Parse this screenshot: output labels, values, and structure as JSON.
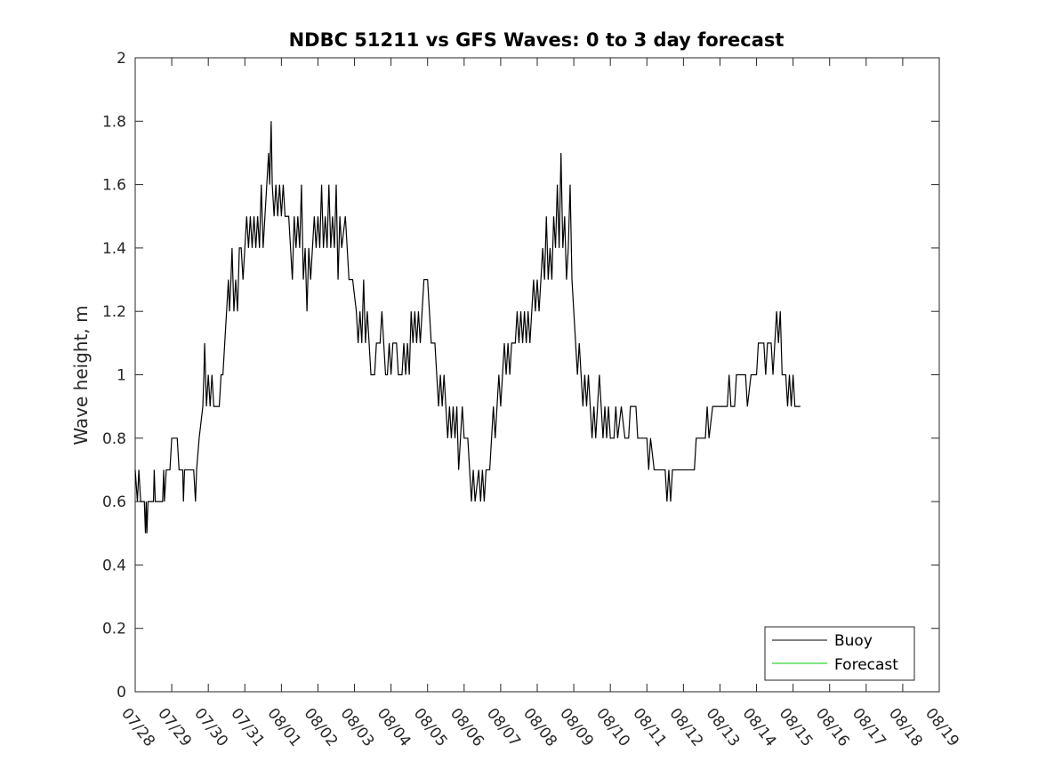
{
  "chart_data": {
    "type": "line",
    "title": "NDBC 51211 vs GFS Waves: 0 to 3 day forecast",
    "xlabel": "",
    "ylabel": "Wave height, m",
    "ylim": [
      0,
      2
    ],
    "yticks": [
      "0",
      "0.2",
      "0.4",
      "0.6",
      "0.8",
      "1",
      "1.2",
      "1.4",
      "1.6",
      "1.8",
      "2"
    ],
    "xlim_days": [
      0,
      22
    ],
    "xticks": [
      "07/28",
      "07/29",
      "07/30",
      "07/31",
      "08/01",
      "08/02",
      "08/03",
      "08/04",
      "08/05",
      "08/06",
      "08/07",
      "08/08",
      "08/09",
      "08/10",
      "08/11",
      "08/12",
      "08/13",
      "08/14",
      "08/15",
      "08/16",
      "08/17",
      "08/18",
      "08/19"
    ],
    "grid": false,
    "legend": "bottom-right",
    "series": [
      {
        "name": "Buoy",
        "color": "#000000",
        "points": [
          [
            0.0,
            0.7
          ],
          [
            0.06,
            0.6
          ],
          [
            0.1,
            0.7
          ],
          [
            0.15,
            0.6
          ],
          [
            0.25,
            0.6
          ],
          [
            0.28,
            0.5
          ],
          [
            0.3,
            0.6
          ],
          [
            0.32,
            0.5
          ],
          [
            0.35,
            0.6
          ],
          [
            0.5,
            0.6
          ],
          [
            0.52,
            0.7
          ],
          [
            0.55,
            0.6
          ],
          [
            0.75,
            0.6
          ],
          [
            0.78,
            0.7
          ],
          [
            0.8,
            0.6
          ],
          [
            0.85,
            0.7
          ],
          [
            0.95,
            0.7
          ],
          [
            1.0,
            0.8
          ],
          [
            1.15,
            0.8
          ],
          [
            1.2,
            0.7
          ],
          [
            1.3,
            0.7
          ],
          [
            1.32,
            0.6
          ],
          [
            1.35,
            0.7
          ],
          [
            1.6,
            0.7
          ],
          [
            1.65,
            0.6
          ],
          [
            1.68,
            0.7
          ],
          [
            1.75,
            0.8
          ],
          [
            1.85,
            0.9
          ],
          [
            1.88,
            1.0
          ],
          [
            1.9,
            1.1
          ],
          [
            1.95,
            0.9
          ],
          [
            2.0,
            1.0
          ],
          [
            2.05,
            0.9
          ],
          [
            2.1,
            1.0
          ],
          [
            2.15,
            0.9
          ],
          [
            2.3,
            0.9
          ],
          [
            2.35,
            1.0
          ],
          [
            2.4,
            1.0
          ],
          [
            2.45,
            1.1
          ],
          [
            2.5,
            1.2
          ],
          [
            2.55,
            1.3
          ],
          [
            2.58,
            1.2
          ],
          [
            2.62,
            1.3
          ],
          [
            2.65,
            1.4
          ],
          [
            2.7,
            1.2
          ],
          [
            2.75,
            1.3
          ],
          [
            2.8,
            1.2
          ],
          [
            2.85,
            1.4
          ],
          [
            2.9,
            1.4
          ],
          [
            2.95,
            1.3
          ],
          [
            3.0,
            1.4
          ],
          [
            3.05,
            1.5
          ],
          [
            3.1,
            1.4
          ],
          [
            3.15,
            1.5
          ],
          [
            3.2,
            1.4
          ],
          [
            3.25,
            1.5
          ],
          [
            3.3,
            1.4
          ],
          [
            3.35,
            1.5
          ],
          [
            3.4,
            1.4
          ],
          [
            3.45,
            1.6
          ],
          [
            3.5,
            1.4
          ],
          [
            3.55,
            1.5
          ],
          [
            3.6,
            1.6
          ],
          [
            3.65,
            1.7
          ],
          [
            3.68,
            1.6
          ],
          [
            3.72,
            1.8
          ],
          [
            3.75,
            1.6
          ],
          [
            3.8,
            1.5
          ],
          [
            3.85,
            1.6
          ],
          [
            3.9,
            1.5
          ],
          [
            3.95,
            1.6
          ],
          [
            4.0,
            1.5
          ],
          [
            4.05,
            1.6
          ],
          [
            4.1,
            1.5
          ],
          [
            4.2,
            1.5
          ],
          [
            4.25,
            1.4
          ],
          [
            4.3,
            1.3
          ],
          [
            4.35,
            1.5
          ],
          [
            4.4,
            1.4
          ],
          [
            4.45,
            1.5
          ],
          [
            4.5,
            1.4
          ],
          [
            4.55,
            1.6
          ],
          [
            4.6,
            1.3
          ],
          [
            4.65,
            1.4
          ],
          [
            4.7,
            1.2
          ],
          [
            4.75,
            1.4
          ],
          [
            4.8,
            1.3
          ],
          [
            4.85,
            1.4
          ],
          [
            4.9,
            1.5
          ],
          [
            4.95,
            1.4
          ],
          [
            5.0,
            1.5
          ],
          [
            5.05,
            1.4
          ],
          [
            5.1,
            1.6
          ],
          [
            5.15,
            1.4
          ],
          [
            5.2,
            1.5
          ],
          [
            5.25,
            1.4
          ],
          [
            5.3,
            1.6
          ],
          [
            5.35,
            1.4
          ],
          [
            5.4,
            1.5
          ],
          [
            5.45,
            1.4
          ],
          [
            5.5,
            1.6
          ],
          [
            5.55,
            1.3
          ],
          [
            5.6,
            1.5
          ],
          [
            5.65,
            1.4
          ],
          [
            5.75,
            1.5
          ],
          [
            5.8,
            1.4
          ],
          [
            5.85,
            1.3
          ],
          [
            5.95,
            1.3
          ],
          [
            6.05,
            1.2
          ],
          [
            6.1,
            1.1
          ],
          [
            6.15,
            1.2
          ],
          [
            6.2,
            1.1
          ],
          [
            6.25,
            1.3
          ],
          [
            6.3,
            1.1
          ],
          [
            6.35,
            1.2
          ],
          [
            6.4,
            1.1
          ],
          [
            6.45,
            1.0
          ],
          [
            6.55,
            1.0
          ],
          [
            6.6,
            1.1
          ],
          [
            6.7,
            1.1
          ],
          [
            6.75,
            1.2
          ],
          [
            6.8,
            1.1
          ],
          [
            6.85,
            1.0
          ],
          [
            6.9,
            1.0
          ],
          [
            6.95,
            1.1
          ],
          [
            7.0,
            1.0
          ],
          [
            7.05,
            1.1
          ],
          [
            7.15,
            1.1
          ],
          [
            7.2,
            1.0
          ],
          [
            7.3,
            1.0
          ],
          [
            7.35,
            1.1
          ],
          [
            7.4,
            1.0
          ],
          [
            7.45,
            1.1
          ],
          [
            7.5,
            1.0
          ],
          [
            7.55,
            1.2
          ],
          [
            7.6,
            1.1
          ],
          [
            7.65,
            1.2
          ],
          [
            7.7,
            1.1
          ],
          [
            7.75,
            1.2
          ],
          [
            7.8,
            1.1
          ],
          [
            7.85,
            1.2
          ],
          [
            7.9,
            1.3
          ],
          [
            8.0,
            1.3
          ],
          [
            8.05,
            1.2
          ],
          [
            8.1,
            1.1
          ],
          [
            8.2,
            1.1
          ],
          [
            8.25,
            1.0
          ],
          [
            8.3,
            0.9
          ],
          [
            8.35,
            1.0
          ],
          [
            8.4,
            0.9
          ],
          [
            8.45,
            1.0
          ],
          [
            8.5,
            0.9
          ],
          [
            8.55,
            0.8
          ],
          [
            8.6,
            0.9
          ],
          [
            8.65,
            0.8
          ],
          [
            8.7,
            0.9
          ],
          [
            8.75,
            0.8
          ],
          [
            8.8,
            0.9
          ],
          [
            8.85,
            0.7
          ],
          [
            8.9,
            0.8
          ],
          [
            8.95,
            0.9
          ],
          [
            9.0,
            0.8
          ],
          [
            9.1,
            0.8
          ],
          [
            9.15,
            0.7
          ],
          [
            9.2,
            0.6
          ],
          [
            9.25,
            0.7
          ],
          [
            9.3,
            0.6
          ],
          [
            9.4,
            0.7
          ],
          [
            9.45,
            0.6
          ],
          [
            9.5,
            0.7
          ],
          [
            9.55,
            0.6
          ],
          [
            9.6,
            0.7
          ],
          [
            9.7,
            0.7
          ],
          [
            9.75,
            0.8
          ],
          [
            9.8,
            0.9
          ],
          [
            9.85,
            0.8
          ],
          [
            9.9,
            0.9
          ],
          [
            9.95,
            1.0
          ],
          [
            10.0,
            0.9
          ],
          [
            10.05,
            1.0
          ],
          [
            10.1,
            1.1
          ],
          [
            10.15,
            1.0
          ],
          [
            10.2,
            1.1
          ],
          [
            10.25,
            1.0
          ],
          [
            10.3,
            1.1
          ],
          [
            10.4,
            1.1
          ],
          [
            10.45,
            1.2
          ],
          [
            10.5,
            1.1
          ],
          [
            10.55,
            1.2
          ],
          [
            10.6,
            1.1
          ],
          [
            10.65,
            1.2
          ],
          [
            10.7,
            1.1
          ],
          [
            10.75,
            1.2
          ],
          [
            10.8,
            1.1
          ],
          [
            10.85,
            1.2
          ],
          [
            10.9,
            1.3
          ],
          [
            10.95,
            1.2
          ],
          [
            11.0,
            1.3
          ],
          [
            11.05,
            1.2
          ],
          [
            11.1,
            1.3
          ],
          [
            11.15,
            1.4
          ],
          [
            11.2,
            1.3
          ],
          [
            11.25,
            1.5
          ],
          [
            11.3,
            1.3
          ],
          [
            11.35,
            1.4
          ],
          [
            11.4,
            1.3
          ],
          [
            11.45,
            1.5
          ],
          [
            11.5,
            1.4
          ],
          [
            11.55,
            1.6
          ],
          [
            11.6,
            1.4
          ],
          [
            11.65,
            1.7
          ],
          [
            11.7,
            1.4
          ],
          [
            11.75,
            1.5
          ],
          [
            11.8,
            1.3
          ],
          [
            11.85,
            1.4
          ],
          [
            11.9,
            1.6
          ],
          [
            11.95,
            1.3
          ],
          [
            12.0,
            1.2
          ],
          [
            12.05,
            1.1
          ],
          [
            12.1,
            1.0
          ],
          [
            12.15,
            1.1
          ],
          [
            12.2,
            1.0
          ],
          [
            12.25,
            0.9
          ],
          [
            12.3,
            1.0
          ],
          [
            12.35,
            0.9
          ],
          [
            12.4,
            1.0
          ],
          [
            12.45,
            0.9
          ],
          [
            12.5,
            0.8
          ],
          [
            12.55,
            0.9
          ],
          [
            12.6,
            0.8
          ],
          [
            12.65,
            0.9
          ],
          [
            12.7,
            1.0
          ],
          [
            12.75,
            0.9
          ],
          [
            12.8,
            0.8
          ],
          [
            12.85,
            0.9
          ],
          [
            12.9,
            0.8
          ],
          [
            12.95,
            0.9
          ],
          [
            13.0,
            0.8
          ],
          [
            13.1,
            0.8
          ],
          [
            13.15,
            0.9
          ],
          [
            13.2,
            0.8
          ],
          [
            13.3,
            0.9
          ],
          [
            13.4,
            0.8
          ],
          [
            13.5,
            0.8
          ],
          [
            13.55,
            0.9
          ],
          [
            13.7,
            0.9
          ],
          [
            13.75,
            0.8
          ],
          [
            14.0,
            0.8
          ],
          [
            14.05,
            0.7
          ],
          [
            14.1,
            0.8
          ],
          [
            14.2,
            0.7
          ],
          [
            14.5,
            0.7
          ],
          [
            14.55,
            0.6
          ],
          [
            14.6,
            0.7
          ],
          [
            14.65,
            0.6
          ],
          [
            14.7,
            0.7
          ],
          [
            14.8,
            0.7
          ],
          [
            15.3,
            0.7
          ],
          [
            15.35,
            0.8
          ],
          [
            15.6,
            0.8
          ],
          [
            15.65,
            0.9
          ],
          [
            15.7,
            0.8
          ],
          [
            15.8,
            0.9
          ],
          [
            16.0,
            0.9
          ],
          [
            16.2,
            0.9
          ],
          [
            16.25,
            1.0
          ],
          [
            16.3,
            0.9
          ],
          [
            16.4,
            0.9
          ],
          [
            16.45,
            1.0
          ],
          [
            16.7,
            1.0
          ],
          [
            16.75,
            0.9
          ],
          [
            16.85,
            1.0
          ],
          [
            17.0,
            1.0
          ],
          [
            17.05,
            1.1
          ],
          [
            17.2,
            1.1
          ],
          [
            17.25,
            1.0
          ],
          [
            17.3,
            1.1
          ],
          [
            17.4,
            1.1
          ],
          [
            17.45,
            1.0
          ],
          [
            17.5,
            1.1
          ],
          [
            17.55,
            1.2
          ],
          [
            17.6,
            1.1
          ],
          [
            17.65,
            1.2
          ],
          [
            17.7,
            1.0
          ],
          [
            17.8,
            1.0
          ],
          [
            17.85,
            0.9
          ],
          [
            17.9,
            1.0
          ],
          [
            17.95,
            0.9
          ],
          [
            18.0,
            1.0
          ],
          [
            18.05,
            0.9
          ],
          [
            18.2,
            0.9
          ]
        ]
      },
      {
        "name": "Forecast",
        "color": "#00cc00",
        "points": []
      }
    ]
  }
}
